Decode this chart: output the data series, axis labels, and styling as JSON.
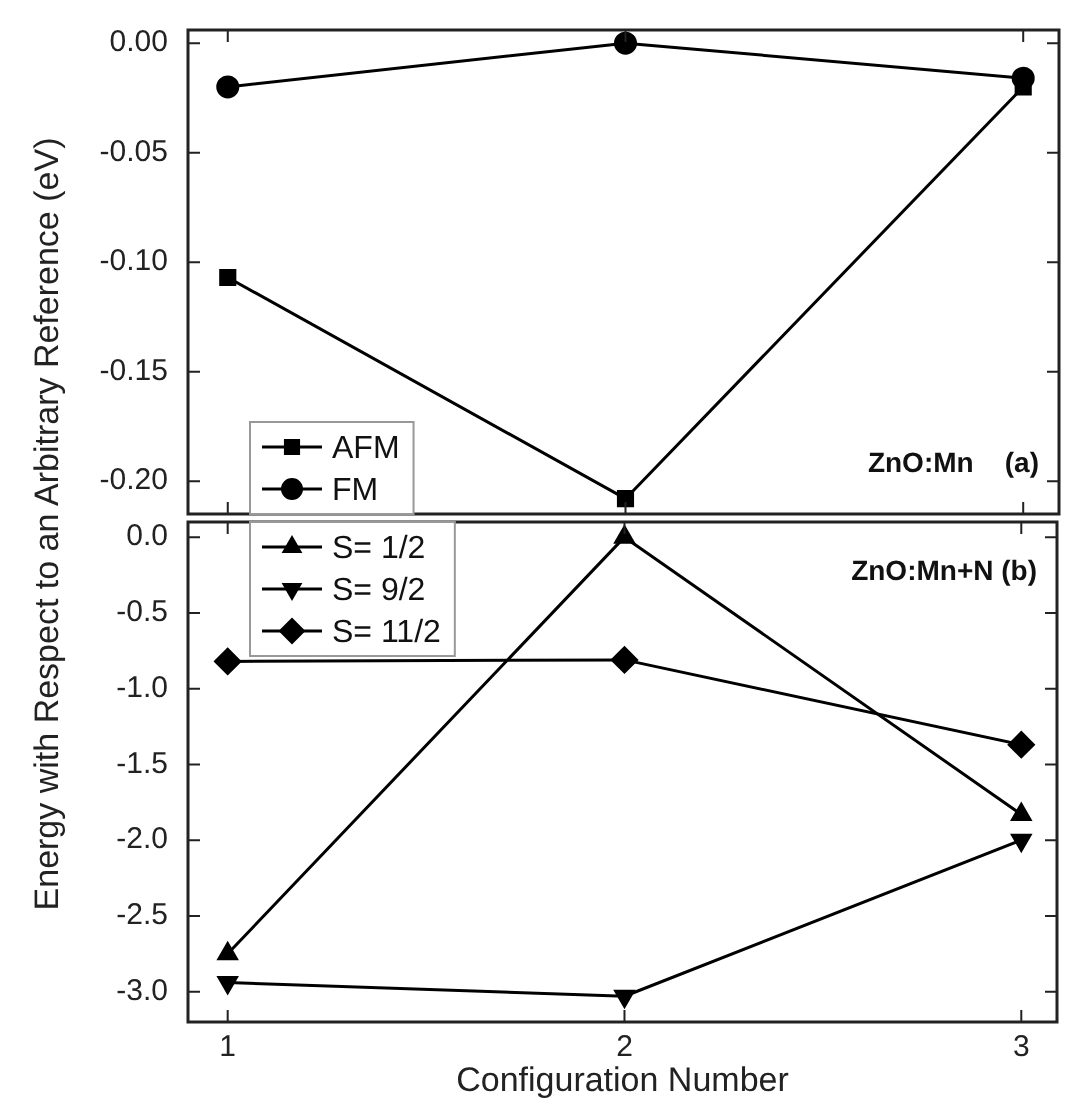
{
  "chart_data": [
    {
      "type": "line",
      "ylabel": "Energy with Respect to an Arbitrary Reference (eV)",
      "x": [
        1,
        2,
        3
      ],
      "xlim": [
        0.9,
        3.09
      ],
      "xticks": [
        1,
        2,
        3
      ],
      "ylim": [
        -0.215,
        0.006
      ],
      "yticks": [
        {
          "value": 0,
          "label": "0.00"
        },
        {
          "value": -0.05,
          "label": "-0.05"
        },
        {
          "value": -0.1,
          "label": "-0.10"
        },
        {
          "value": -0.15,
          "label": "-0.15"
        },
        {
          "value": -0.2,
          "label": "-0.20"
        }
      ],
      "tick_labels": "y",
      "legend": "bottom left",
      "grid": false,
      "line_style": "solid",
      "annotations": [
        "ZnO:Mn    (a)"
      ],
      "series": [
        {
          "name": "AFM",
          "color": "#000000",
          "marker": "square",
          "values": [
            -0.107,
            -0.208,
            -0.02
          ]
        },
        {
          "name": "FM",
          "color": "#000000",
          "marker": "circle",
          "values": [
            -0.02,
            0.0,
            -0.016
          ]
        }
      ]
    },
    {
      "type": "line",
      "xlabel": "Configuration Number",
      "x": [
        1,
        2,
        3
      ],
      "xlim": [
        0.9,
        3.09
      ],
      "xticks": [
        1,
        2,
        3
      ],
      "ylim": [
        -3.2,
        0.1
      ],
      "yticks": [
        {
          "value": 0,
          "label": "0.0"
        },
        {
          "value": -0.5,
          "label": "-0.5"
        },
        {
          "value": -1,
          "label": "-1.0"
        },
        {
          "value": -1.5,
          "label": "-1.5"
        },
        {
          "value": -2,
          "label": "-2.0"
        },
        {
          "value": -2.5,
          "label": "-2.5"
        },
        {
          "value": -3,
          "label": "-3.0"
        }
      ],
      "legend": "top left",
      "grid": false,
      "line_style": "solid",
      "annotations": [
        "ZnO:Mn+N (b)"
      ],
      "series": [
        {
          "name": "S= 1/2",
          "color": "#000000",
          "marker": "triangle",
          "values": [
            -2.75,
            0.0,
            -1.83
          ]
        },
        {
          "name": "S= 9/2",
          "color": "#000000",
          "marker": "triangle-down",
          "values": [
            -2.94,
            -3.03,
            -2.0
          ]
        },
        {
          "name": "S= 11/2",
          "color": "#000000",
          "marker": "diamond",
          "values": [
            -0.82,
            -0.81,
            -1.37
          ]
        }
      ]
    }
  ]
}
